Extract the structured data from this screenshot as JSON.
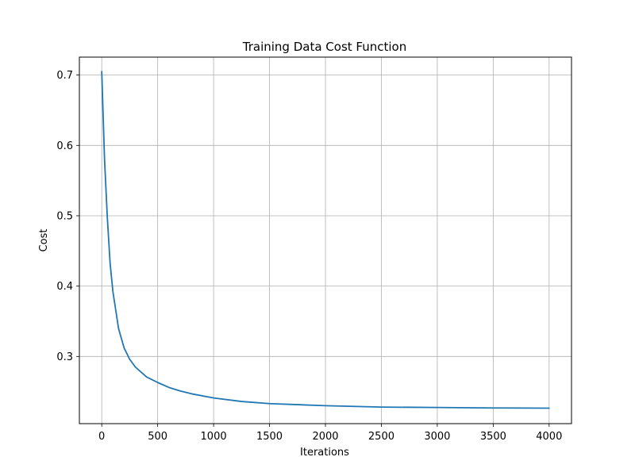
{
  "chart_data": {
    "type": "line",
    "title": "Training Data Cost Function",
    "xlabel": "Iterations",
    "ylabel": "Cost",
    "xlim": [
      -200,
      4200
    ],
    "ylim": [
      0.2045,
      0.7255
    ],
    "xticks": [
      0,
      500,
      1000,
      1500,
      2000,
      2500,
      3000,
      3500,
      4000
    ],
    "yticks": [
      0.3,
      0.4,
      0.5,
      0.6,
      0.7
    ],
    "grid": true,
    "legend": "none",
    "series": [
      {
        "color": "#1f77b4",
        "x": [
          0,
          25,
          50,
          75,
          100,
          150,
          200,
          250,
          300,
          400,
          500,
          600,
          700,
          800,
          1000,
          1250,
          1500,
          2000,
          2500,
          3000,
          3500,
          4000
        ],
        "y": [
          0.705,
          0.58,
          0.497,
          0.432,
          0.392,
          0.34,
          0.312,
          0.296,
          0.285,
          0.271,
          0.263,
          0.256,
          0.251,
          0.247,
          0.241,
          0.236,
          0.233,
          0.23,
          0.228,
          0.2275,
          0.2268,
          0.2265
        ]
      }
    ]
  }
}
